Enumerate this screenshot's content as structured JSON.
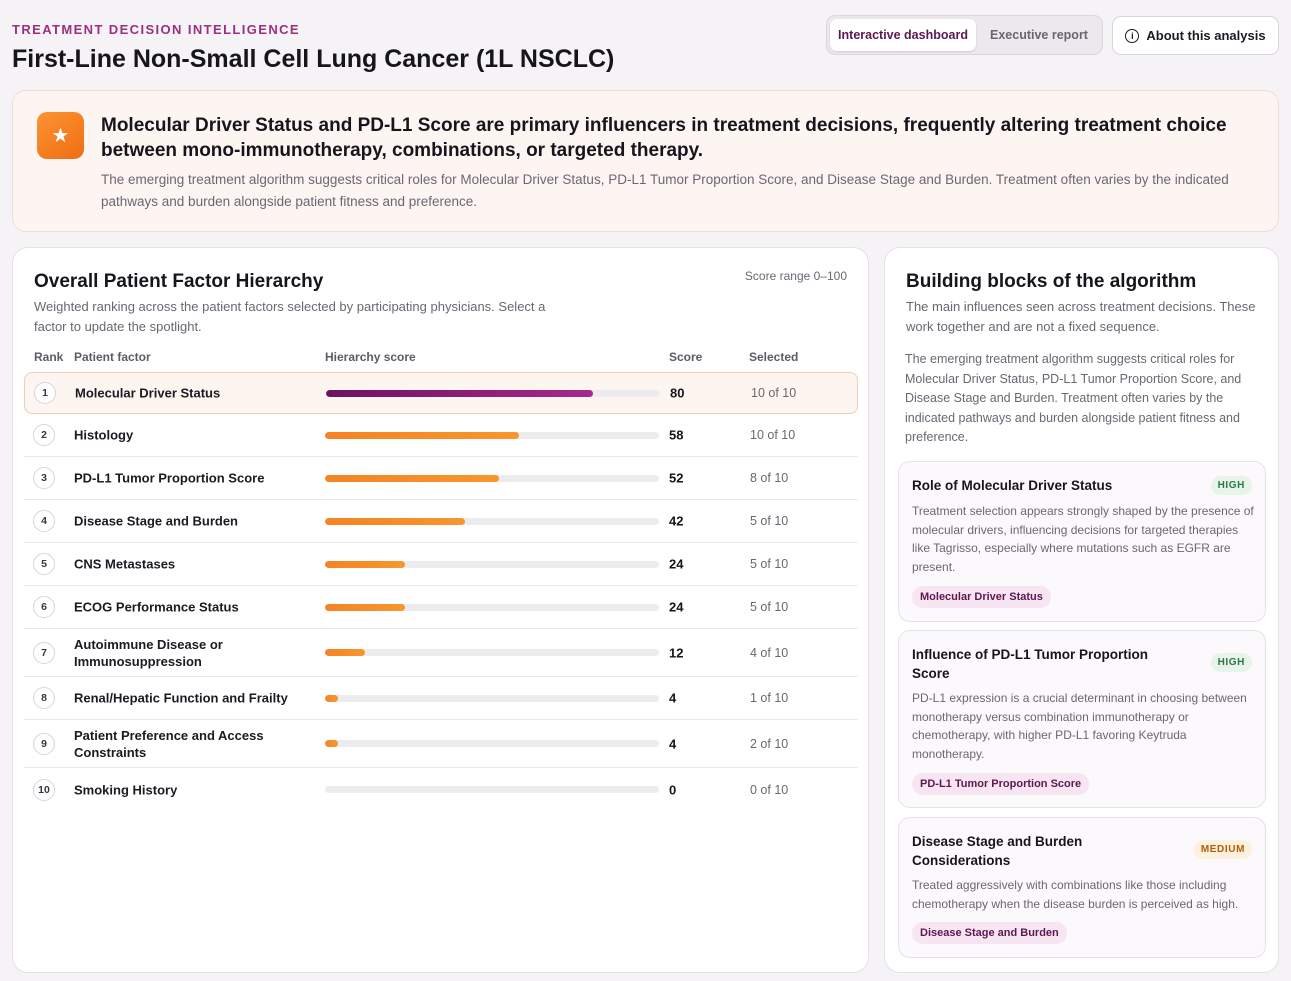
{
  "header": {
    "eyebrow": "TREATMENT DECISION INTELLIGENCE",
    "title": "First-Line Non-Small Cell Lung Cancer (1L NSCLC)",
    "view_tabs": [
      {
        "label": "Interactive dashboard",
        "active": true
      },
      {
        "label": "Executive report",
        "active": false
      }
    ],
    "about_label": "About this analysis",
    "about_icon": "info-circle-icon"
  },
  "insight": {
    "icon": "star-icon",
    "headline": "Molecular Driver Status and PD-L1 Score are primary influencers in treatment decisions, frequently altering treatment choice between mono-immunotherapy, combinations, or targeted therapy.",
    "body": "The emerging treatment algorithm suggests critical roles for Molecular Driver Status, PD-L1 Tumor Proportion Score, and Disease Stage and Burden. Treatment often varies by the indicated pathways and burden alongside patient fitness and preference."
  },
  "hierarchy": {
    "title": "Overall Patient Factor Hierarchy",
    "subtitle": "Weighted ranking across the patient factors selected by participating physicians. Select a factor to update the spotlight.",
    "range_note": "Score range 0–100",
    "columns": {
      "rank": "Rank",
      "factor": "Patient factor",
      "bar": "Hierarchy score",
      "score": "Score",
      "selected": "Selected"
    },
    "max_score": 100,
    "rows": [
      {
        "rank": "1",
        "factor": "Molecular Driver Status",
        "score": 80,
        "selected": "10 of 10"
      },
      {
        "rank": "2",
        "factor": "Histology",
        "score": 58,
        "selected": "10 of 10"
      },
      {
        "rank": "3",
        "factor": "PD-L1 Tumor Proportion Score",
        "score": 52,
        "selected": "8 of 10"
      },
      {
        "rank": "4",
        "factor": "Disease Stage and Burden",
        "score": 42,
        "selected": "5 of 10"
      },
      {
        "rank": "5",
        "factor": "CNS Metastases",
        "score": 24,
        "selected": "5 of 10"
      },
      {
        "rank": "6",
        "factor": "ECOG Performance Status",
        "score": 24,
        "selected": "5 of 10"
      },
      {
        "rank": "7",
        "factor": "Autoimmune Disease or Immunosuppression",
        "score": 12,
        "selected": "4 of 10"
      },
      {
        "rank": "8",
        "factor": "Renal/Hepatic Function and Frailty",
        "score": 4,
        "selected": "1 of 10"
      },
      {
        "rank": "9",
        "factor": "Patient Preference and Access Constraints",
        "score": 4,
        "selected": "2 of 10"
      },
      {
        "rank": "10",
        "factor": "Smoking History",
        "score": 0,
        "selected": "0 of 10"
      }
    ]
  },
  "algorithm": {
    "title": "Building blocks of the algorithm",
    "subtitle": "The main influences seen across treatment decisions. These work together and are not a fixed sequence.",
    "summary": "The emerging treatment algorithm suggests critical roles for Molecular Driver Status, PD-L1 Tumor Proportion Score, and Disease Stage and Burden. Treatment often varies by the indicated pathways and burden alongside patient fitness and preference.",
    "blocks": [
      {
        "title": "Role of Molecular Driver Status",
        "level": "HIGH",
        "body": "Treatment selection appears strongly shaped by the presence of molecular drivers, influencing decisions for targeted therapies like Tagrisso, especially where mutations such as EGFR are present.",
        "tag": "Molecular Driver Status"
      },
      {
        "title": "Influence of PD-L1 Tumor Proportion Score",
        "level": "HIGH",
        "body": "PD-L1 expression is a crucial determinant in choosing between monotherapy versus combination immunotherapy or chemotherapy, with higher PD-L1 favoring Keytruda monotherapy.",
        "tag": "PD-L1 Tumor Proportion Score"
      },
      {
        "title": "Disease Stage and Burden Considerations",
        "level": "MEDIUM",
        "body": "Treated aggressively with combinations like those including chemotherapy when the disease burden is perceived as high.",
        "tag": "Disease Stage and Burden"
      }
    ]
  },
  "colors": {
    "accent": "#9b2f82",
    "top_bar": "#8a1e78",
    "bar": "#f58324",
    "high": "#2b7a45",
    "medium": "#b15e0a"
  }
}
